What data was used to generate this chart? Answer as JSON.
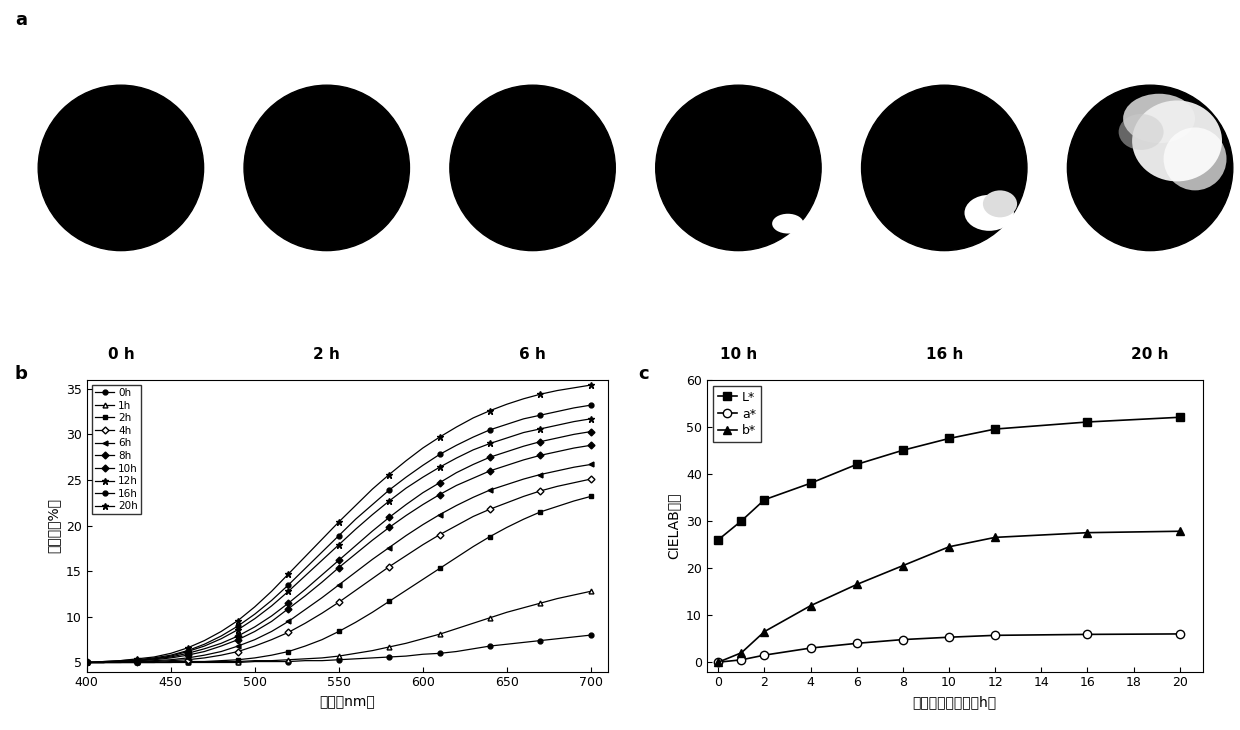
{
  "panel_a_labels": [
    "0 h",
    "2 h",
    "6 h",
    "10 h",
    "16 h",
    "20 h"
  ],
  "wavelengths": [
    400,
    410,
    420,
    430,
    440,
    450,
    460,
    470,
    480,
    490,
    500,
    510,
    520,
    530,
    540,
    550,
    560,
    570,
    580,
    590,
    600,
    610,
    620,
    630,
    640,
    650,
    660,
    670,
    680,
    690,
    700
  ],
  "reflectance": {
    "0h": [
      5.0,
      5.0,
      5.0,
      5.0,
      5.0,
      5.0,
      5.0,
      5.0,
      5.0,
      5.0,
      5.1,
      5.1,
      5.1,
      5.2,
      5.2,
      5.3,
      5.4,
      5.5,
      5.6,
      5.7,
      5.9,
      6.0,
      6.2,
      6.5,
      6.8,
      7.0,
      7.2,
      7.4,
      7.6,
      7.8,
      8.0
    ],
    "1h": [
      5.0,
      5.0,
      5.0,
      5.0,
      5.0,
      5.0,
      5.1,
      5.1,
      5.1,
      5.1,
      5.2,
      5.2,
      5.3,
      5.4,
      5.5,
      5.7,
      6.0,
      6.3,
      6.7,
      7.1,
      7.6,
      8.1,
      8.7,
      9.3,
      9.9,
      10.5,
      11.0,
      11.5,
      12.0,
      12.4,
      12.8
    ],
    "2h": [
      5.0,
      5.0,
      5.0,
      5.0,
      5.0,
      5.1,
      5.1,
      5.1,
      5.2,
      5.3,
      5.5,
      5.8,
      6.2,
      6.8,
      7.5,
      8.4,
      9.4,
      10.5,
      11.7,
      12.9,
      14.1,
      15.3,
      16.5,
      17.7,
      18.8,
      19.8,
      20.7,
      21.5,
      22.1,
      22.7,
      23.2
    ],
    "4h": [
      5.0,
      5.0,
      5.0,
      5.1,
      5.1,
      5.2,
      5.3,
      5.5,
      5.8,
      6.2,
      6.8,
      7.5,
      8.3,
      9.3,
      10.4,
      11.6,
      12.9,
      14.2,
      15.5,
      16.7,
      17.9,
      19.0,
      20.0,
      21.0,
      21.8,
      22.5,
      23.2,
      23.8,
      24.3,
      24.7,
      25.1
    ],
    "6h": [
      5.0,
      5.0,
      5.1,
      5.1,
      5.2,
      5.3,
      5.5,
      5.8,
      6.2,
      6.8,
      7.5,
      8.4,
      9.5,
      10.8,
      12.1,
      13.5,
      14.9,
      16.3,
      17.6,
      18.9,
      20.1,
      21.2,
      22.2,
      23.1,
      23.9,
      24.5,
      25.1,
      25.6,
      26.0,
      26.4,
      26.7
    ],
    "8h": [
      5.0,
      5.0,
      5.1,
      5.2,
      5.3,
      5.5,
      5.8,
      6.2,
      6.8,
      7.5,
      8.4,
      9.5,
      10.9,
      12.3,
      13.8,
      15.4,
      16.9,
      18.4,
      19.8,
      21.1,
      22.3,
      23.4,
      24.4,
      25.2,
      26.0,
      26.6,
      27.2,
      27.7,
      28.1,
      28.5,
      28.8
    ],
    "10h": [
      5.0,
      5.0,
      5.1,
      5.2,
      5.4,
      5.6,
      6.0,
      6.5,
      7.1,
      7.9,
      8.9,
      10.1,
      11.5,
      13.0,
      14.6,
      16.2,
      17.8,
      19.4,
      20.9,
      22.3,
      23.6,
      24.7,
      25.8,
      26.7,
      27.5,
      28.1,
      28.7,
      29.2,
      29.6,
      30.0,
      30.3
    ],
    "12h": [
      5.0,
      5.0,
      5.1,
      5.2,
      5.4,
      5.7,
      6.2,
      6.8,
      7.6,
      8.6,
      9.8,
      11.2,
      12.8,
      14.5,
      16.2,
      17.9,
      19.6,
      21.2,
      22.7,
      24.1,
      25.3,
      26.4,
      27.4,
      28.3,
      29.0,
      29.6,
      30.2,
      30.6,
      31.0,
      31.4,
      31.7
    ],
    "16h": [
      5.0,
      5.1,
      5.2,
      5.3,
      5.5,
      5.8,
      6.3,
      7.0,
      7.9,
      9.0,
      10.3,
      11.8,
      13.5,
      15.3,
      17.1,
      18.9,
      20.7,
      22.3,
      23.9,
      25.3,
      26.6,
      27.8,
      28.8,
      29.7,
      30.5,
      31.1,
      31.7,
      32.1,
      32.5,
      32.9,
      33.2
    ],
    "20h": [
      5.0,
      5.1,
      5.2,
      5.4,
      5.6,
      6.0,
      6.6,
      7.4,
      8.4,
      9.6,
      11.1,
      12.8,
      14.7,
      16.6,
      18.5,
      20.4,
      22.2,
      24.0,
      25.6,
      27.1,
      28.5,
      29.7,
      30.8,
      31.8,
      32.6,
      33.3,
      33.9,
      34.4,
      34.8,
      35.1,
      35.4
    ]
  },
  "cielab_times": [
    0,
    1,
    2,
    4,
    6,
    8,
    10,
    12,
    16,
    20
  ],
  "L_star": [
    26.0,
    30.0,
    34.5,
    38.0,
    42.0,
    45.0,
    47.5,
    49.5,
    51.0,
    52.0
  ],
  "a_star": [
    0.0,
    0.5,
    1.5,
    3.0,
    4.0,
    4.8,
    5.3,
    5.7,
    5.9,
    6.0
  ],
  "b_star": [
    0.0,
    2.0,
    6.5,
    12.0,
    16.5,
    20.5,
    24.5,
    26.5,
    27.5,
    27.8
  ],
  "ylabel_b": "反射率（%）",
  "xlabel_b": "波长（nm）",
  "ylabel_c": "CIELAB局値",
  "xlabel_c": "紫外光照射时限（h）"
}
